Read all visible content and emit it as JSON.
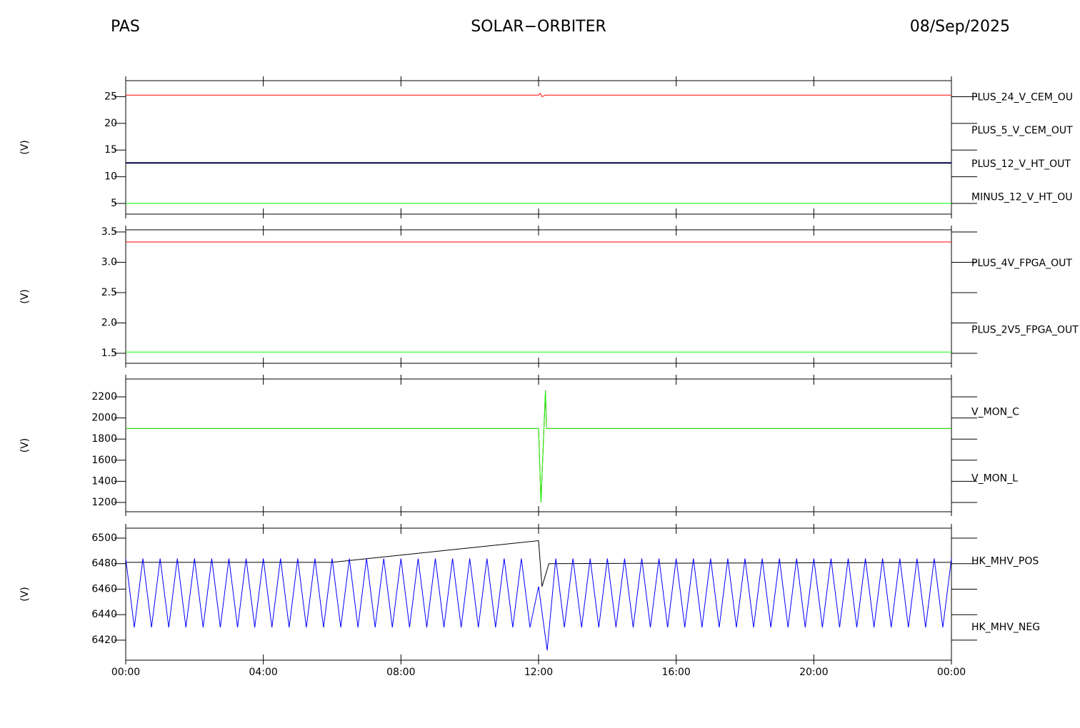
{
  "header": {
    "left": "PAS",
    "center": "SOLAR−ORBITER",
    "right": "08/Sep/2025"
  },
  "chart_data": [
    {
      "type": "line",
      "ylabel": "(V)",
      "xlim": [
        0,
        24
      ],
      "ylim": [
        3,
        28
      ],
      "yticks": [
        5,
        10,
        15,
        20,
        25
      ],
      "series": [
        {
          "name": "PLUS_24_V_CEM_OU",
          "color": "#ff0000",
          "x": [
            0,
            12.0,
            12.05,
            12.1,
            12.2,
            24
          ],
          "values": [
            25.3,
            25.3,
            25.6,
            25.0,
            25.3,
            25.3
          ]
        },
        {
          "name": "PLUS_5_V_CEM_OUT",
          "color": "#00ff00",
          "x": [
            0,
            24
          ],
          "values": [
            5.0,
            5.0
          ]
        },
        {
          "name": "PLUS_12_V_HT_OUT",
          "color": "#0000a0",
          "x": [
            0,
            24
          ],
          "values": [
            12.6,
            12.6
          ]
        },
        {
          "name": "MINUS_12_V_HT_OU",
          "color": "#000000",
          "x": [
            0,
            24
          ],
          "values": [
            12.6,
            12.6
          ]
        }
      ]
    },
    {
      "type": "line",
      "ylabel": "(V)",
      "xlim": [
        0,
        24
      ],
      "ylim": [
        1.335,
        3.535
      ],
      "yticks": [
        {
          "value": 1.5,
          "label": "1.5"
        },
        {
          "value": 2,
          "label": "2.0"
        },
        {
          "value": 2.5,
          "label": "2.5"
        },
        {
          "value": 3,
          "label": "3.0"
        },
        {
          "value": 3.5,
          "label": "3.5"
        }
      ],
      "series": [
        {
          "name": "PLUS_4V_FPGA_OUT",
          "color": "#ff0000",
          "x": [
            0,
            24
          ],
          "values": [
            3.335,
            3.335
          ]
        },
        {
          "name": "PLUS_2V5_FPGA_OUT",
          "color": "#00ff00",
          "x": [
            0,
            24
          ],
          "values": [
            1.52,
            1.52
          ]
        }
      ]
    },
    {
      "type": "line",
      "ylabel": "(V)",
      "xlim": [
        0,
        24
      ],
      "ylim": [
        1112,
        2369
      ],
      "yticks": [
        1200,
        1400,
        1600,
        1800,
        2000,
        2200
      ],
      "series": [
        {
          "name": "V_MON_C",
          "color": "#ff0000",
          "x": [
            0,
            12.0,
            12.07,
            12.2,
            12.23,
            24
          ],
          "values": [
            1900,
            1900,
            1200,
            2260,
            1900,
            1900
          ]
        },
        {
          "name": "V_MON_L",
          "color": "#00ff00",
          "x": [
            0,
            12.0,
            12.07,
            12.2,
            12.23,
            24
          ],
          "values": [
            1900,
            1900,
            1200,
            2260,
            1900,
            1900
          ]
        }
      ]
    },
    {
      "type": "line",
      "ylabel": "(V)",
      "xlim": [
        0,
        24
      ],
      "ylim": [
        6404.3,
        6507.8
      ],
      "yticks": [
        6420,
        6440,
        6460,
        6480,
        6500
      ],
      "xticks": [
        {
          "value": 0,
          "label": "00:00"
        },
        {
          "value": 4,
          "label": "04:00"
        },
        {
          "value": 8,
          "label": "08:00"
        },
        {
          "value": 12,
          "label": "12:00"
        },
        {
          "value": 16,
          "label": "16:00"
        },
        {
          "value": 20,
          "label": "20:00"
        },
        {
          "value": 24,
          "label": "00:00"
        }
      ],
      "series": [
        {
          "name": "HK_MHV_POS",
          "color": "#000000",
          "x": [
            0,
            6,
            12.0,
            12.1,
            12.3,
            24
          ],
          "values": [
            6481,
            6481,
            6498,
            6462,
            6480,
            6481
          ]
        },
        {
          "name": "HK_MHV_NEG",
          "color": "#0000ff",
          "x": [
            0,
            0.25,
            0.5,
            0.75,
            1,
            1.25,
            1.5,
            1.75,
            2,
            2.25,
            2.5,
            2.75,
            3,
            3.25,
            3.5,
            3.75,
            4,
            4.25,
            4.5,
            4.75,
            5,
            5.25,
            5.5,
            5.75,
            6,
            6.25,
            6.5,
            6.75,
            7,
            7.25,
            7.5,
            7.75,
            8,
            8.25,
            8.5,
            8.75,
            9,
            9.25,
            9.5,
            9.75,
            10,
            10.25,
            10.5,
            10.75,
            11,
            11.25,
            11.5,
            11.75,
            12,
            12.25,
            12.5,
            12.75,
            13,
            13.25,
            13.5,
            13.75,
            14,
            14.25,
            14.5,
            14.75,
            15,
            15.25,
            15.5,
            15.75,
            16,
            16.25,
            16.5,
            16.75,
            17,
            17.25,
            17.5,
            17.75,
            18,
            18.25,
            18.5,
            18.75,
            19,
            19.25,
            19.5,
            19.75,
            20,
            20.25,
            20.5,
            20.75,
            21,
            21.25,
            21.5,
            21.75,
            22,
            22.25,
            22.5,
            22.75,
            23,
            23.25,
            23.5,
            23.75,
            24
          ],
          "values": [
            6484,
            6430,
            6484,
            6430,
            6484,
            6430,
            6484,
            6430,
            6484,
            6430,
            6484,
            6430,
            6484,
            6430,
            6484,
            6430,
            6484,
            6430,
            6484,
            6430,
            6484,
            6430,
            6484,
            6430,
            6484,
            6430,
            6484,
            6430,
            6484,
            6430,
            6484,
            6430,
            6484,
            6430,
            6484,
            6430,
            6484,
            6430,
            6484,
            6430,
            6484,
            6430,
            6484,
            6430,
            6484,
            6430,
            6484,
            6430,
            6462,
            6412,
            6484,
            6430,
            6484,
            6430,
            6484,
            6430,
            6484,
            6430,
            6484,
            6430,
            6484,
            6430,
            6484,
            6430,
            6484,
            6430,
            6484,
            6430,
            6484,
            6430,
            6484,
            6430,
            6484,
            6430,
            6484,
            6430,
            6484,
            6430,
            6484,
            6430,
            6484,
            6430,
            6484,
            6430,
            6484,
            6430,
            6484,
            6430,
            6484,
            6430,
            6484,
            6430,
            6484,
            6430,
            6484,
            6430,
            6484
          ]
        }
      ]
    }
  ]
}
